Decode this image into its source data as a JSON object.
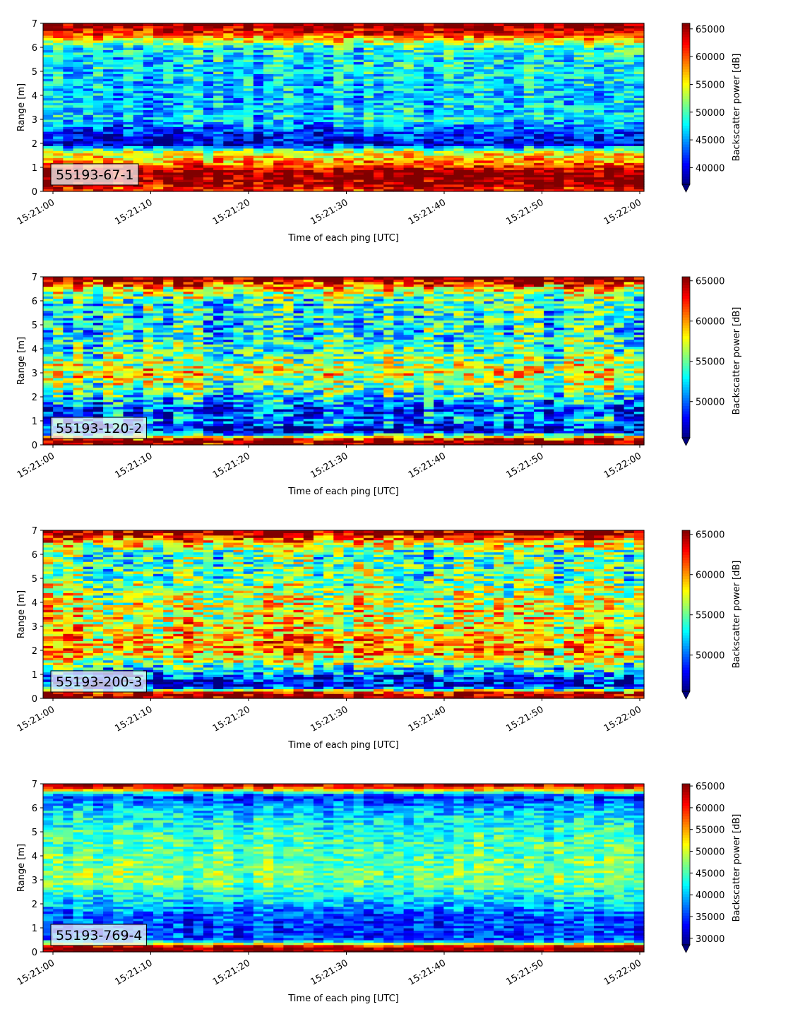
{
  "chart_data": [
    {
      "type": "heatmap",
      "label": "55193-67-1",
      "xlabel": "Time of each ping [UTC]",
      "ylabel": "Range [m]",
      "x_ticks": [
        "15:21:00",
        "15:21:10",
        "15:21:20",
        "15:21:30",
        "15:21:40",
        "15:21:50",
        "15:22:00"
      ],
      "y_ticks": [
        0,
        1,
        2,
        3,
        4,
        5,
        6,
        7
      ],
      "ylim": [
        0,
        7
      ],
      "colorbar": {
        "label": "Backscatter power [dB]",
        "min": 37000,
        "max": 66000,
        "ticks": [
          40000,
          45000,
          50000,
          55000,
          60000,
          65000
        ],
        "colormap": "jet",
        "extend": "min"
      },
      "ocean_profile": [
        {
          "range": 0.1,
          "value": 62000
        },
        {
          "range": 0.4,
          "value": 66000
        },
        {
          "range": 0.8,
          "value": 66000
        },
        {
          "range": 1.2,
          "value": 58000
        },
        {
          "range": 1.6,
          "value": 55000
        },
        {
          "range": 2.0,
          "value": 39000
        },
        {
          "range": 2.5,
          "value": 42000
        },
        {
          "range": 3.0,
          "value": 47000
        },
        {
          "range": 4.0,
          "value": 46000
        },
        {
          "range": 5.0,
          "value": 47000
        },
        {
          "range": 6.0,
          "value": 48000
        },
        {
          "range": 6.5,
          "value": 60000
        },
        {
          "range": 6.9,
          "value": 66000
        }
      ]
    },
    {
      "type": "heatmap",
      "label": "55193-120-2",
      "xlabel": "Time of each ping [UTC]",
      "ylabel": "Range [m]",
      "x_ticks": [
        "15:21:00",
        "15:21:10",
        "15:21:20",
        "15:21:30",
        "15:21:40",
        "15:21:50",
        "15:22:00"
      ],
      "y_ticks": [
        0,
        1,
        2,
        3,
        4,
        5,
        6,
        7
      ],
      "ylim": [
        0,
        7
      ],
      "colorbar": {
        "label": "Backscatter power [dB]",
        "min": 45500,
        "max": 65500,
        "ticks": [
          50000,
          55000,
          60000,
          65000
        ],
        "colormap": "jet",
        "extend": "min"
      },
      "ocean_profile": [
        {
          "range": 0.2,
          "value": 65500
        },
        {
          "range": 0.6,
          "value": 47000
        },
        {
          "range": 1.0,
          "value": 51000
        },
        {
          "range": 1.5,
          "value": 49000
        },
        {
          "range": 2.0,
          "value": 53000
        },
        {
          "range": 3.0,
          "value": 58000
        },
        {
          "range": 4.0,
          "value": 54000
        },
        {
          "range": 5.0,
          "value": 53000
        },
        {
          "range": 6.0,
          "value": 54000
        },
        {
          "range": 6.5,
          "value": 58000
        },
        {
          "range": 6.9,
          "value": 65500
        }
      ]
    },
    {
      "type": "heatmap",
      "label": "55193-200-3",
      "xlabel": "Time of each ping [UTC]",
      "ylabel": "Range [m]",
      "x_ticks": [
        "15:21:00",
        "15:21:10",
        "15:21:20",
        "15:21:30",
        "15:21:40",
        "15:21:50",
        "15:22:00"
      ],
      "y_ticks": [
        0,
        1,
        2,
        3,
        4,
        5,
        6,
        7
      ],
      "ylim": [
        0,
        7
      ],
      "colorbar": {
        "label": "Backscatter power [dB]",
        "min": 45500,
        "max": 65500,
        "ticks": [
          50000,
          55000,
          60000,
          65000
        ],
        "colormap": "jet",
        "extend": "min"
      },
      "ocean_profile": [
        {
          "range": 0.2,
          "value": 65500
        },
        {
          "range": 0.5,
          "value": 47000
        },
        {
          "range": 1.0,
          "value": 50000
        },
        {
          "range": 1.5,
          "value": 56000
        },
        {
          "range": 2.0,
          "value": 60000
        },
        {
          "range": 3.0,
          "value": 58000
        },
        {
          "range": 4.0,
          "value": 57000
        },
        {
          "range": 5.0,
          "value": 55000
        },
        {
          "range": 6.0,
          "value": 54000
        },
        {
          "range": 6.5,
          "value": 58000
        },
        {
          "range": 6.9,
          "value": 65500
        }
      ]
    },
    {
      "type": "heatmap",
      "label": "55193-769-4",
      "xlabel": "Time of each ping [UTC]",
      "ylabel": "Range [m]",
      "x_ticks": [
        "15:21:00",
        "15:21:10",
        "15:21:20",
        "15:21:30",
        "15:21:40",
        "15:21:50",
        "15:22:00"
      ],
      "y_ticks": [
        0,
        1,
        2,
        3,
        4,
        5,
        6,
        7
      ],
      "ylim": [
        0,
        7
      ],
      "colorbar": {
        "label": "Backscatter power [dB]",
        "min": 28500,
        "max": 65500,
        "ticks": [
          30000,
          35000,
          40000,
          45000,
          50000,
          55000,
          60000,
          65000
        ],
        "colormap": "jet",
        "extend": "min"
      },
      "ocean_profile": [
        {
          "range": 0.2,
          "value": 65500
        },
        {
          "range": 0.5,
          "value": 36000
        },
        {
          "range": 1.0,
          "value": 35000
        },
        {
          "range": 1.5,
          "value": 36000
        },
        {
          "range": 2.0,
          "value": 40000
        },
        {
          "range": 3.0,
          "value": 47000
        },
        {
          "range": 4.0,
          "value": 46000
        },
        {
          "range": 5.0,
          "value": 44000
        },
        {
          "range": 6.0,
          "value": 40000
        },
        {
          "range": 6.5,
          "value": 34000
        },
        {
          "range": 6.9,
          "value": 62000
        }
      ]
    }
  ]
}
